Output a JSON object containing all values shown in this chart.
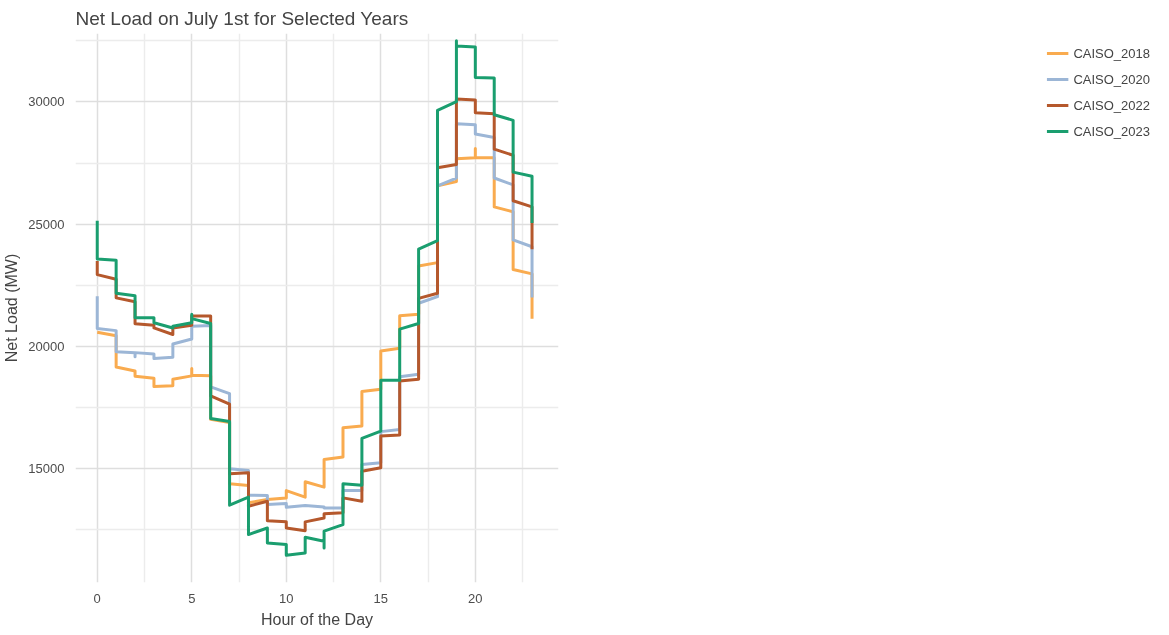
{
  "chart_data": {
    "type": "line",
    "title": "Net Load on July 1st for Selected Years",
    "xlabel": "Hour of the Day",
    "ylabel": "Net Load (MW)",
    "xlim": [
      -1.15,
      24.4
    ],
    "ylim": [
      10350,
      32800
    ],
    "xticks": [
      0,
      5,
      10,
      15,
      20
    ],
    "yticks": [
      15000,
      20000,
      25000,
      30000
    ],
    "grid": true,
    "legend": "right",
    "line_style": "solid",
    "marker": "none",
    "series": [
      {
        "name": "CAISO_2018",
        "color": "#f9ab4f",
        "x": [
          0,
          1,
          1,
          2,
          2,
          3,
          3,
          4,
          4,
          5,
          5,
          5,
          6,
          6,
          7,
          7,
          8,
          8,
          9,
          10,
          10,
          11,
          11,
          12,
          12,
          13,
          13,
          14,
          14,
          15,
          15,
          16,
          16,
          17,
          17,
          18,
          18,
          19,
          19,
          20,
          20,
          20,
          21,
          21,
          22,
          22,
          23,
          23
        ],
        "values": [
          20580,
          20440,
          19160,
          19000,
          18780,
          18700,
          18370,
          18400,
          18660,
          18800,
          19100,
          18830,
          18800,
          17020,
          16890,
          14390,
          14320,
          13610,
          13740,
          13810,
          14110,
          13840,
          14470,
          14250,
          15380,
          15480,
          16680,
          16750,
          18160,
          18250,
          19820,
          19930,
          21260,
          21320,
          23290,
          23430,
          26570,
          26750,
          27680,
          27720,
          28100,
          27720,
          27720,
          25710,
          25510,
          23150,
          22970,
          21140
        ]
      },
      {
        "name": "CAISO_2020",
        "color": "#9cb6d6",
        "x": [
          0,
          0,
          1,
          1,
          2,
          2,
          2,
          3,
          3,
          4,
          4,
          5,
          5,
          6,
          6,
          7,
          7,
          8,
          8,
          9,
          9,
          10,
          10,
          11,
          12,
          12,
          13,
          13,
          14,
          14,
          15,
          15,
          16,
          16,
          17,
          17,
          18,
          18,
          19,
          19,
          20,
          20,
          21,
          21,
          22,
          22,
          23,
          23
        ],
        "values": [
          22060,
          20740,
          20650,
          19790,
          19750,
          19580,
          19750,
          19690,
          19510,
          19560,
          20100,
          20310,
          20830,
          20860,
          18350,
          18070,
          15000,
          14930,
          13920,
          13910,
          13540,
          13580,
          13430,
          13500,
          13440,
          13400,
          13400,
          14110,
          14110,
          15180,
          15250,
          16520,
          16610,
          18760,
          18870,
          21770,
          22040,
          26570,
          26890,
          29110,
          29070,
          28690,
          28550,
          26890,
          26610,
          24360,
          24080,
          22000
        ]
      },
      {
        "name": "CAISO_2022",
        "color": "#b5582c",
        "x": [
          0,
          0,
          1,
          1,
          2,
          2,
          3,
          3,
          4,
          4,
          5,
          5,
          6,
          6,
          7,
          7,
          8,
          8,
          9,
          9,
          10,
          10,
          11,
          11,
          12,
          12,
          13,
          13,
          14,
          14,
          15,
          15,
          16,
          16,
          17,
          17,
          18,
          18,
          19,
          19,
          20,
          20,
          21,
          21,
          22,
          22,
          23,
          23
        ],
        "values": [
          23500,
          22940,
          22750,
          21990,
          21830,
          20930,
          20870,
          20760,
          20490,
          20760,
          20870,
          21250,
          21250,
          17980,
          17640,
          14800,
          14840,
          13470,
          13670,
          12880,
          12830,
          12580,
          12470,
          12830,
          12990,
          13160,
          13200,
          13810,
          13670,
          14900,
          15040,
          16340,
          16380,
          18590,
          18660,
          21970,
          22180,
          27310,
          27440,
          30120,
          30080,
          29560,
          29520,
          28070,
          27820,
          25960,
          25710,
          23980
        ]
      },
      {
        "name": "CAISO_2023",
        "color": "#1a9e6f",
        "x": [
          0,
          0,
          1,
          1,
          2,
          2,
          3,
          3,
          4,
          4,
          5,
          5,
          5,
          6,
          6,
          7,
          7,
          8,
          8,
          9,
          9,
          10,
          10,
          11,
          11,
          12,
          12,
          12,
          13,
          13,
          14,
          14,
          15,
          15,
          16,
          16,
          17,
          17,
          18,
          18,
          19,
          19,
          19,
          20,
          20,
          21,
          21,
          22,
          22,
          23,
          23
        ],
        "values": [
          25140,
          23580,
          23530,
          22180,
          22080,
          21180,
          21180,
          20970,
          20760,
          20830,
          20970,
          21320,
          21140,
          20940,
          17060,
          16930,
          13510,
          13840,
          12310,
          12580,
          11970,
          11900,
          11460,
          11560,
          12200,
          12040,
          11760,
          12450,
          12720,
          14390,
          14330,
          16240,
          16540,
          18620,
          18620,
          20710,
          20940,
          23980,
          24330,
          29660,
          30010,
          32500,
          32290,
          32250,
          31000,
          30980,
          29480,
          29250,
          27130,
          26960,
          25050
        ]
      }
    ]
  }
}
